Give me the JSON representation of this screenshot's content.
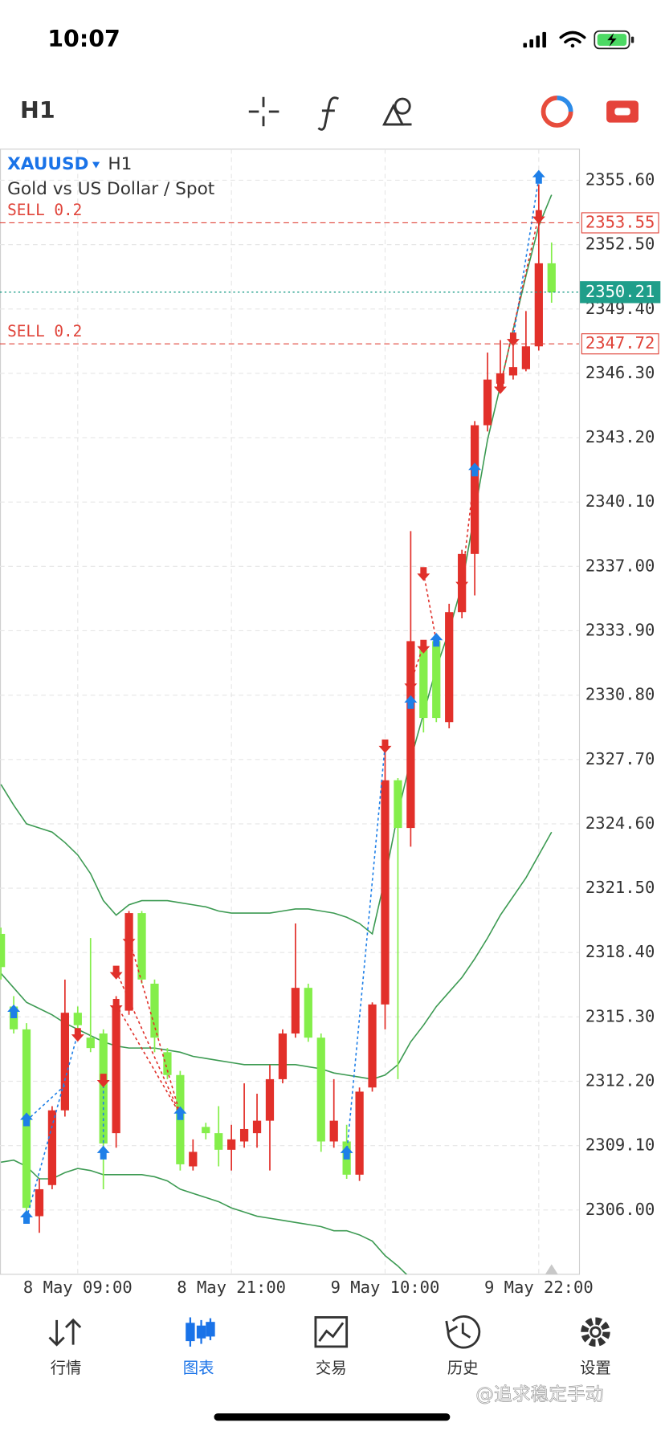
{
  "status_bar": {
    "time": "10:07"
  },
  "toolbar": {
    "timeframe": "H1"
  },
  "chart_data": {
    "type": "candlestick",
    "symbol": "XAUUSD",
    "timeframe": "H1",
    "description": "Gold vs US Dollar / Spot",
    "categories": [
      null,
      null,
      null,
      null,
      null,
      null,
      "8 May 09:00",
      null,
      null,
      null,
      null,
      null,
      null,
      null,
      null,
      null,
      null,
      null,
      "8 May 21:00",
      null,
      null,
      null,
      null,
      null,
      null,
      null,
      null,
      null,
      null,
      null,
      "9 May 10:00",
      null,
      null,
      null,
      null,
      null,
      null,
      null,
      null,
      null,
      null,
      null,
      "9 May 22:00",
      null
    ],
    "open": [
      2319.3,
      2315.8,
      2314.7,
      2305.7,
      2307.2,
      2310.8,
      2315.5,
      2314.3,
      2314.5,
      2309.7,
      2315.6,
      2320.3,
      2316.9,
      2313.6,
      2312.5,
      2308.1,
      2310.0,
      2309.7,
      2308.9,
      2309.3,
      2309.7,
      2310.3,
      2312.3,
      2314.5,
      2316.7,
      2314.3,
      2309.3,
      2309.3,
      2307.7,
      2311.9,
      2315.9,
      2326.7,
      2324.4,
      2333.0,
      2333.4,
      2329.5,
      2334.8,
      2337.6,
      2343.8,
      2345.8,
      2346.2,
      2346.5,
      2347.6,
      2351.6
    ],
    "high": [
      2319.6,
      2316.3,
      2315.0,
      2307.5,
      2311.0,
      2317.1,
      2315.8,
      2319.1,
      2314.7,
      2316.3,
      2320.4,
      2320.4,
      2317.1,
      2313.8,
      2312.7,
      2309.4,
      2310.2,
      2311.0,
      2310.1,
      2312.1,
      2311.6,
      2313.0,
      2314.7,
      2319.8,
      2316.9,
      2314.5,
      2312.3,
      2310.1,
      2311.9,
      2316.0,
      2328.4,
      2326.8,
      2338.7,
      2333.4,
      2333.6,
      2335.2,
      2337.8,
      2344.0,
      2347.3,
      2347.9,
      2348.2,
      2349.3,
      2355.4,
      2352.6
    ],
    "low": [
      2317.1,
      2314.5,
      2305.9,
      2304.9,
      2307.0,
      2310.5,
      2314.5,
      2313.6,
      2307.0,
      2309.0,
      2315.4,
      2316.9,
      2313.6,
      2312.3,
      2307.9,
      2307.9,
      2309.4,
      2308.1,
      2307.9,
      2309.0,
      2309.0,
      2307.9,
      2312.1,
      2314.3,
      2314.1,
      2308.8,
      2309.0,
      2307.5,
      2307.4,
      2311.7,
      2314.7,
      2312.3,
      2323.5,
      2329.0,
      2329.5,
      2329.2,
      2334.5,
      2335.6,
      2343.5,
      2345.5,
      2346.0,
      2346.4,
      2347.4,
      2349.7
    ],
    "close": [
      2317.7,
      2314.7,
      2306.1,
      2307.0,
      2310.8,
      2315.5,
      2314.9,
      2313.8,
      2309.2,
      2315.8,
      2320.3,
      2317.1,
      2314.3,
      2312.5,
      2308.2,
      2308.8,
      2309.7,
      2308.9,
      2309.4,
      2309.9,
      2310.3,
      2312.3,
      2314.5,
      2316.7,
      2314.3,
      2309.3,
      2310.3,
      2307.7,
      2311.7,
      2315.9,
      2326.7,
      2324.4,
      2333.4,
      2329.7,
      2329.7,
      2334.8,
      2337.6,
      2343.8,
      2346.0,
      2346.3,
      2346.6,
      2347.6,
      2351.6,
      2350.2
    ],
    "up_color": "#e2302a",
    "down_color": "#84ee4a",
    "lines": [
      {
        "color": "#3c9a52",
        "values": [
          2326.5,
          2325.5,
          2324.6,
          2324.4,
          2324.2,
          2323.7,
          2323.1,
          2322.2,
          2320.9,
          2320.2,
          2320.7,
          2320.9,
          2320.9,
          2320.9,
          2320.8,
          2320.7,
          2320.6,
          2320.4,
          2320.3,
          2320.3,
          2320.3,
          2320.3,
          2320.4,
          2320.5,
          2320.5,
          2320.4,
          2320.3,
          2320.1,
          2319.8,
          2319.3,
          2322.0,
          2325.1,
          2327.7,
          2329.9,
          2332.1,
          2333.9,
          2336.1,
          2339.6,
          2343.1,
          2345.7,
          2348.4,
          2351.0,
          2353.4,
          2354.9
        ]
      },
      {
        "color": "#3c9a52",
        "values": [
          2317.4,
          2316.7,
          2316.0,
          2315.7,
          2315.4,
          2315.0,
          2314.7,
          2314.4,
          2314.1,
          2313.9,
          2313.8,
          2313.8,
          2313.8,
          2313.7,
          2313.6,
          2313.4,
          2313.3,
          2313.2,
          2313.1,
          2313.0,
          2313.0,
          2313.0,
          2313.0,
          2313.0,
          2312.9,
          2312.8,
          2312.6,
          2312.5,
          2312.4,
          2312.3,
          2312.5,
          2313.0,
          2314.1,
          2314.9,
          2315.8,
          2316.5,
          2317.2,
          2318.1,
          2319.1,
          2320.2,
          2321.1,
          2322.0,
          2323.1,
          2324.2
        ]
      },
      {
        "color": "#3c9a52",
        "values": [
          2308.3,
          2308.4,
          2308.1,
          2307.5,
          2307.5,
          2307.8,
          2308.0,
          2307.9,
          2307.7,
          2307.7,
          2307.7,
          2307.7,
          2307.6,
          2307.4,
          2307.0,
          2306.8,
          2306.6,
          2306.4,
          2306.1,
          2305.9,
          2305.7,
          2305.6,
          2305.5,
          2305.4,
          2305.3,
          2305.2,
          2305.0,
          2305.0,
          2304.8,
          2304.5,
          2303.8,
          2303.3,
          2302.7,
          null,
          null,
          null,
          null,
          null,
          null,
          null,
          null,
          null,
          null,
          null
        ]
      }
    ],
    "ylim": [
      2302.9,
      2357.1
    ],
    "yticks": [
      {
        "value": 2355.6,
        "label": "2355.60"
      },
      {
        "value": 2352.5,
        "label": "2352.50"
      },
      {
        "value": 2349.4,
        "label": "2349.40"
      },
      {
        "value": 2346.3,
        "label": "2346.30"
      },
      {
        "value": 2343.2,
        "label": "2343.20"
      },
      {
        "value": 2340.1,
        "label": "2340.10"
      },
      {
        "value": 2337,
        "label": "2337.00"
      },
      {
        "value": 2333.9,
        "label": "2333.90"
      },
      {
        "value": 2330.8,
        "label": "2330.80"
      },
      {
        "value": 2327.7,
        "label": "2327.70"
      },
      {
        "value": 2324.6,
        "label": "2324.60"
      },
      {
        "value": 2321.5,
        "label": "2321.50"
      },
      {
        "value": 2318.4,
        "label": "2318.40"
      },
      {
        "value": 2315.3,
        "label": "2315.30"
      },
      {
        "value": 2312.2,
        "label": "2312.20"
      },
      {
        "value": 2309.1,
        "label": "2309.10"
      },
      {
        "value": 2306,
        "label": "2306.00"
      }
    ],
    "grid": true,
    "orders": [
      {
        "label": "SELL 0.2",
        "value": 2353.55,
        "value_label": "2353.55",
        "color": "#e0443a"
      },
      {
        "label": "SELL 0.2",
        "value": 2347.72,
        "value_label": "2347.72",
        "color": "#e0443a"
      }
    ],
    "current_price": {
      "value": 2350.21,
      "label": "2350.21",
      "color": "#1f9e8a"
    },
    "buy_color": "#1e7fe8",
    "sell_color": "#e0302a",
    "markers": [
      {
        "side": "buy",
        "index": 1,
        "price": 2315.5
      },
      {
        "side": "buy",
        "index": 2,
        "price": 2310.3
      },
      {
        "side": "buy",
        "index": 2,
        "price": 2305.6
      },
      {
        "side": "buy",
        "index": 8,
        "price": 2308.7
      },
      {
        "side": "buy",
        "index": 14,
        "price": 2310.6
      },
      {
        "side": "buy",
        "index": 27,
        "price": 2308.7
      },
      {
        "side": "buy",
        "index": 32,
        "price": 2330.4
      },
      {
        "side": "buy",
        "index": 34,
        "price": 2333.4
      },
      {
        "side": "buy",
        "index": 37,
        "price": 2341.6
      },
      {
        "side": "buy",
        "index": 42,
        "price": 2355.7
      },
      {
        "side": "sell",
        "index": 6,
        "price": 2314.5
      },
      {
        "side": "sell",
        "index": 8,
        "price": 2312.3
      },
      {
        "side": "sell",
        "index": 9,
        "price": 2317.5
      },
      {
        "side": "sell",
        "index": 9,
        "price": 2315.9
      },
      {
        "side": "sell",
        "index": 10,
        "price": 2319.1
      },
      {
        "side": "sell",
        "index": 30,
        "price": 2328.4
      },
      {
        "side": "sell",
        "index": 32,
        "price": 2331.4
      },
      {
        "side": "sell",
        "index": 33,
        "price": 2336.7
      },
      {
        "side": "sell",
        "index": 33,
        "price": 2333.2
      },
      {
        "side": "sell",
        "index": 36,
        "price": 2336.3
      },
      {
        "side": "sell",
        "index": 39,
        "price": 2345.7
      },
      {
        "side": "sell",
        "index": 40,
        "price": 2348.0
      },
      {
        "side": "sell",
        "index": 42,
        "price": 2353.9
      }
    ],
    "trade_lines": [
      {
        "side": "buy",
        "from": [
          2,
          2305.6
        ],
        "to": [
          6,
          2314.5
        ]
      },
      {
        "side": "buy",
        "from": [
          2,
          2310.3
        ],
        "to": [
          5,
          2312.0
        ]
      },
      {
        "side": "buy",
        "from": [
          8,
          2308.7
        ],
        "to": [
          8,
          2312.3
        ]
      },
      {
        "side": "buy",
        "from": [
          27,
          2308.7
        ],
        "to": [
          30,
          2328.4
        ]
      },
      {
        "side": "buy",
        "from": [
          42,
          2355.7
        ],
        "to": [
          40,
          2348.0
        ]
      },
      {
        "side": "sell",
        "from": [
          10,
          2319.1
        ],
        "to": [
          14,
          2310.6
        ]
      },
      {
        "side": "sell",
        "from": [
          9,
          2317.5
        ],
        "to": [
          14,
          2310.6
        ]
      },
      {
        "side": "sell",
        "from": [
          9,
          2315.9
        ],
        "to": [
          14,
          2310.6
        ]
      },
      {
        "side": "sell",
        "from": [
          33,
          2336.7
        ],
        "to": [
          34,
          2333.4
        ]
      },
      {
        "side": "sell",
        "from": [
          32,
          2331.4
        ],
        "to": [
          33,
          2333.2
        ]
      },
      {
        "side": "sell",
        "from": [
          36,
          2336.3
        ],
        "to": [
          37,
          2341.6
        ]
      },
      {
        "side": "sell",
        "from": [
          42,
          2353.9
        ],
        "to": [
          39,
          2345.7
        ]
      }
    ]
  },
  "nav": {
    "items": [
      "行情",
      "图表",
      "交易",
      "历史",
      "设置"
    ],
    "active": 1
  },
  "watermark": "@追求稳定手动"
}
